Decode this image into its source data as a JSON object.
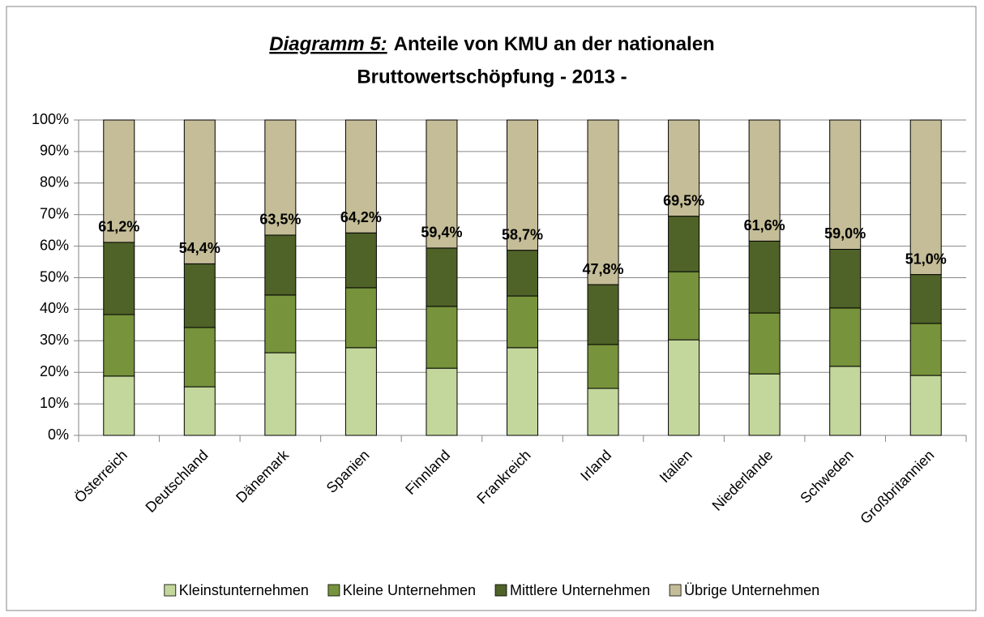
{
  "chart_data": {
    "type": "stacked_bar",
    "title_label": "Diagramm 5:",
    "title": [
      "Anteile von KMU an der nationalen",
      "Bruttowertschöpfung - 2013 -"
    ],
    "categories": [
      "Österreich",
      "Deutschland",
      "Dänemark",
      "Spanien",
      "Finnland",
      "Frankreich",
      "Irland",
      "Italien",
      "Niederlande",
      "Schweden",
      "Großbritannien"
    ],
    "series": [
      {
        "name": "Kleinstunternehmen",
        "color": "#c3d69b",
        "values": [
          18.8,
          15.4,
          26.2,
          27.8,
          21.3,
          27.8,
          14.9,
          30.3,
          19.5,
          21.9,
          19.0
        ]
      },
      {
        "name": "Kleine Unternehmen",
        "color": "#77933c",
        "values": [
          19.5,
          18.8,
          18.3,
          19.0,
          19.6,
          16.4,
          13.9,
          21.6,
          19.3,
          18.5,
          16.5
        ]
      },
      {
        "name": "Mittlere Unternehmen",
        "color": "#4f6228",
        "values": [
          22.9,
          20.2,
          19.0,
          17.4,
          18.5,
          14.5,
          19.0,
          17.6,
          22.8,
          18.6,
          15.5
        ]
      },
      {
        "name": "Übrige Unternehmen",
        "color": "#c4bd97",
        "values": [
          38.8,
          45.6,
          36.5,
          35.8,
          40.6,
          41.3,
          52.2,
          30.5,
          38.4,
          41.0,
          49.0
        ]
      }
    ],
    "sme_totals": {
      "values": [
        61.2,
        54.4,
        63.5,
        64.2,
        59.4,
        58.7,
        47.8,
        69.5,
        61.6,
        59.0,
        51.0
      ],
      "value_labels": [
        "61,2%",
        "54,4%",
        "63,5%",
        "64,2%",
        "59,4%",
        "58,7%",
        "47,8%",
        "69,5%",
        "61,6%",
        "59,0%",
        "51,0%"
      ]
    },
    "ylim": [
      0,
      100
    ],
    "yticks": [
      {
        "value": 0,
        "label": "0%"
      },
      {
        "value": 10,
        "label": "10%"
      },
      {
        "value": 20,
        "label": "20%"
      },
      {
        "value": 30,
        "label": "30%"
      },
      {
        "value": 40,
        "label": "40%"
      },
      {
        "value": 50,
        "label": "50%"
      },
      {
        "value": 60,
        "label": "60%"
      },
      {
        "value": 70,
        "label": "70%"
      },
      {
        "value": 80,
        "label": "80%"
      },
      {
        "value": 90,
        "label": "90%"
      },
      {
        "value": 100,
        "label": "100%"
      }
    ],
    "grid": true
  }
}
